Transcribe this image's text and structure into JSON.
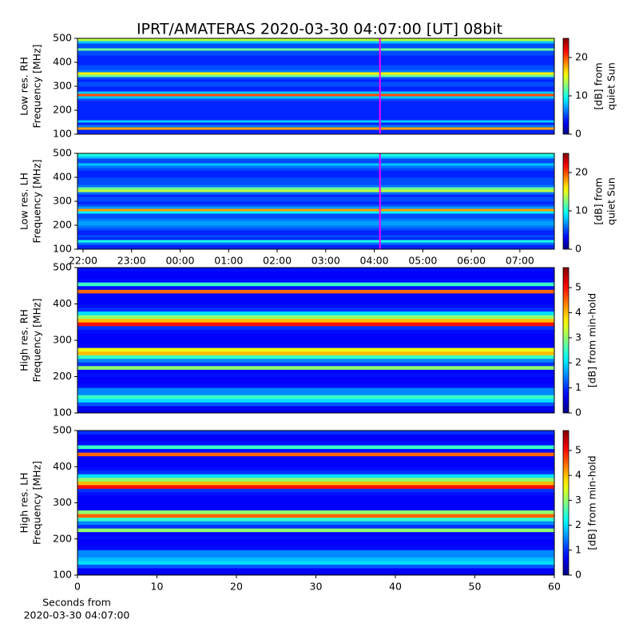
{
  "title": "IPRT/AMATERAS 2020-03-30 04:07:00 [UT]   08bit",
  "chart_data": [
    {
      "type": "spectrogram",
      "ylabel": [
        "Low res. RH",
        "Frequency [MHz]"
      ],
      "colorbar_label": [
        "[dB] from",
        "quiet Sun"
      ],
      "colormap": "jet",
      "clim": [
        0,
        25
      ],
      "cticks": [
        0,
        10,
        20
      ],
      "xlim": [
        21.885,
        31.71
      ],
      "ylim": [
        100,
        500
      ],
      "yticks": [
        100,
        200,
        300,
        400,
        500
      ],
      "marker_x": 28.117,
      "marker_color": "#ff00ff",
      "y": [
        105,
        115,
        125,
        135,
        145,
        155,
        165,
        175,
        185,
        195,
        205,
        215,
        225,
        235,
        245,
        255,
        265,
        275,
        285,
        295,
        305,
        315,
        325,
        335,
        345,
        355,
        365,
        375,
        385,
        395,
        405,
        415,
        425,
        435,
        445,
        455,
        465,
        475,
        485,
        495
      ],
      "values": [
        4,
        4,
        18,
        6,
        4,
        8,
        4,
        4,
        4,
        4,
        4,
        4,
        4,
        4,
        5,
        8,
        20,
        8,
        4,
        4,
        5,
        5,
        4,
        5,
        12,
        16,
        6,
        5,
        5,
        4,
        4,
        4,
        4,
        5,
        5,
        12,
        5,
        5,
        8,
        14
      ]
    },
    {
      "type": "spectrogram",
      "ylabel": [
        "Low res. LH",
        "Frequency [MHz]"
      ],
      "colorbar_label": [
        "[dB] from",
        "quiet Sun"
      ],
      "colormap": "jet",
      "clim": [
        0,
        25
      ],
      "cticks": [
        0,
        10,
        20
      ],
      "xlim": [
        21.885,
        31.71
      ],
      "ylim": [
        100,
        500
      ],
      "yticks": [
        100,
        200,
        300,
        400,
        500
      ],
      "xticks": [
        {
          "value": 22,
          "label": "22:00"
        },
        {
          "value": 23,
          "label": "23:00"
        },
        {
          "value": 24,
          "label": "00:00"
        },
        {
          "value": 25,
          "label": "01:00"
        },
        {
          "value": 26,
          "label": "02:00"
        },
        {
          "value": 27,
          "label": "03:00"
        },
        {
          "value": 28,
          "label": "04:00"
        },
        {
          "value": 29,
          "label": "05:00"
        },
        {
          "value": 30,
          "label": "06:00"
        },
        {
          "value": 31,
          "label": "07:00"
        }
      ],
      "marker_x": 28.117,
      "marker_color": "#ff00ff",
      "y": [
        105,
        115,
        125,
        135,
        145,
        155,
        165,
        175,
        185,
        195,
        205,
        215,
        225,
        235,
        245,
        255,
        265,
        275,
        285,
        295,
        305,
        315,
        325,
        335,
        345,
        355,
        365,
        375,
        385,
        395,
        405,
        415,
        425,
        435,
        445,
        455,
        465,
        475,
        485,
        495
      ],
      "values": [
        4,
        4,
        6,
        10,
        4,
        5,
        4,
        4,
        5,
        6,
        7,
        7,
        6,
        5,
        5,
        9,
        18,
        7,
        5,
        4,
        5,
        5,
        4,
        6,
        14,
        12,
        6,
        5,
        5,
        5,
        4,
        4,
        4,
        5,
        6,
        8,
        5,
        5,
        8,
        10
      ]
    },
    {
      "type": "spectrogram",
      "ylabel": [
        "High res. RH",
        "Frequency [MHz]"
      ],
      "colorbar_label": [
        "[dB] from min-hold"
      ],
      "colormap": "jet",
      "clim": [
        0,
        5.8
      ],
      "cticks": [
        0,
        1,
        2,
        3,
        4,
        5
      ],
      "xlim": [
        0,
        60
      ],
      "ylim": [
        100,
        500
      ],
      "yticks": [
        100,
        200,
        300,
        400,
        500
      ],
      "y": [
        105,
        115,
        125,
        135,
        145,
        155,
        165,
        175,
        185,
        195,
        205,
        215,
        225,
        235,
        245,
        255,
        265,
        275,
        285,
        295,
        305,
        315,
        325,
        335,
        345,
        355,
        365,
        375,
        385,
        395,
        405,
        415,
        425,
        435,
        445,
        455,
        465,
        475,
        485,
        495
      ],
      "values": [
        0.6,
        0.7,
        1.2,
        2,
        2.5,
        1.5,
        1.5,
        0.8,
        0.7,
        0.7,
        0.8,
        0.7,
        3,
        1,
        1.5,
        2.5,
        4,
        3.5,
        0.7,
        0.7,
        0.7,
        0.7,
        0.8,
        1,
        5,
        4,
        3,
        2,
        1,
        0.8,
        0.7,
        0.7,
        0.7,
        4.5,
        0.8,
        2.5,
        0.8,
        0.7,
        0.7,
        0.8
      ]
    },
    {
      "type": "spectrogram",
      "ylabel": [
        "High res. LH",
        "Frequency [MHz]"
      ],
      "colorbar_label": [
        "[dB] from min-hold"
      ],
      "colormap": "jet",
      "clim": [
        0,
        5.8
      ],
      "cticks": [
        0,
        1,
        2,
        3,
        4,
        5
      ],
      "xlim": [
        0,
        60
      ],
      "ylim": [
        100,
        500
      ],
      "yticks": [
        100,
        200,
        300,
        400,
        500
      ],
      "xticks": [
        0,
        10,
        20,
        30,
        40,
        50,
        60
      ],
      "xlabel": [
        "Seconds from",
        "2020-03-30 04:07:00"
      ],
      "y": [
        105,
        115,
        125,
        135,
        145,
        155,
        165,
        175,
        185,
        195,
        205,
        215,
        225,
        235,
        245,
        255,
        265,
        275,
        285,
        295,
        305,
        315,
        325,
        335,
        345,
        355,
        365,
        375,
        385,
        395,
        405,
        415,
        425,
        435,
        445,
        455,
        465,
        475,
        485,
        495
      ],
      "values": [
        0.6,
        0.7,
        1.2,
        2,
        1.8,
        1.5,
        1.5,
        0.8,
        0.7,
        0.7,
        0.8,
        0.7,
        3,
        1,
        1.5,
        2.5,
        4.5,
        3,
        0.7,
        0.7,
        0.7,
        0.7,
        0.8,
        1,
        5,
        4,
        3,
        2,
        1,
        0.8,
        0.7,
        0.7,
        0.7,
        4.5,
        0.8,
        2.5,
        0.8,
        0.7,
        0.7,
        1
      ]
    }
  ]
}
